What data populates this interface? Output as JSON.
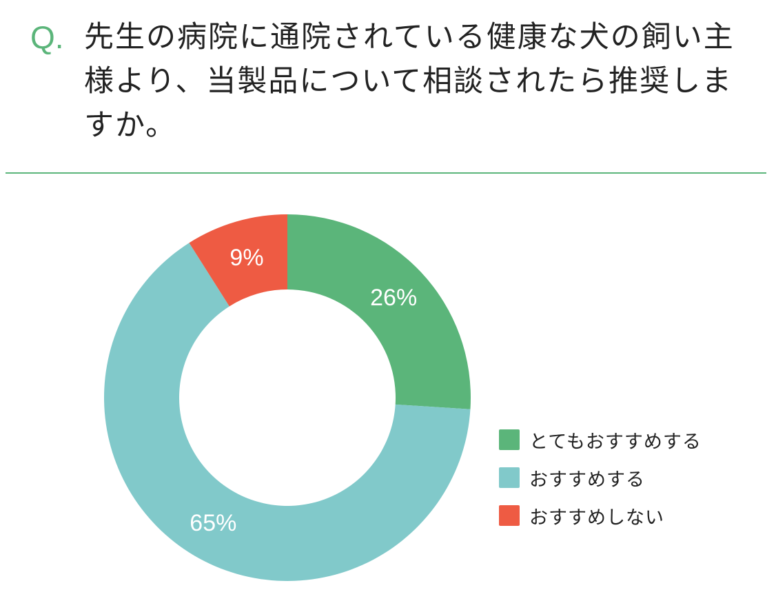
{
  "question": {
    "mark": "Q.",
    "text": "先生の病院に通院されている健康な犬の飼い主様より、当製品について相談されたら推奨しますか。"
  },
  "colors": {
    "accent": "#5bb57a",
    "slice_1": "#5bb57a",
    "slice_2": "#81c9ca",
    "slice_3": "#ee5b43"
  },
  "chart_data": {
    "type": "pie",
    "style": "donut",
    "legend_position": "right",
    "categories": [
      "とてもおすすめする",
      "おすすめする",
      "おすすめしない"
    ],
    "values": [
      26,
      65,
      9
    ],
    "labels": [
      "26%",
      "65%",
      "9%"
    ]
  }
}
